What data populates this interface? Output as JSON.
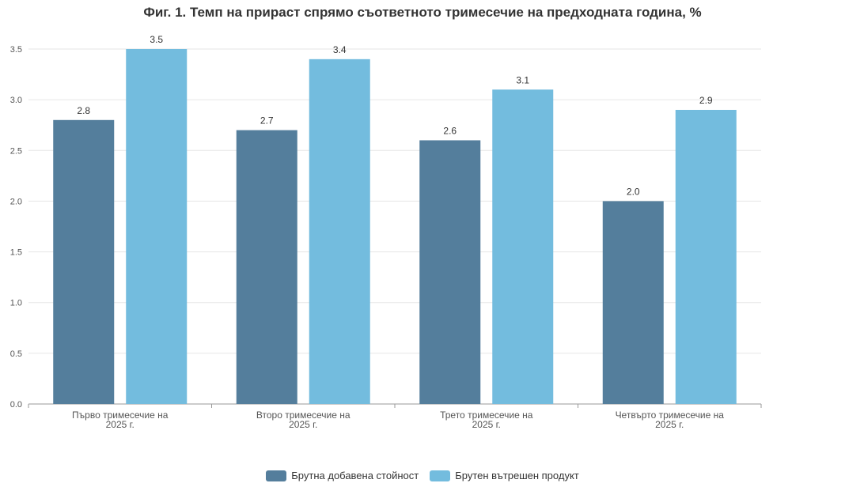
{
  "chart_data": {
    "type": "bar",
    "title": "Фиг. 1. Темп на прираст спрямо съответното тримесечие на предходната година, %",
    "categories": [
      [
        "Първо тримесечие на",
        "2025 г."
      ],
      [
        "Второ тримесечие на",
        "2025 г."
      ],
      [
        "Трето тримесечие на",
        "2025 г."
      ],
      [
        "Четвърто тримесечие на",
        "2025 г."
      ]
    ],
    "series": [
      {
        "name": "Брутна добавена стойност",
        "values": [
          2.8,
          2.7,
          2.6,
          2.0
        ],
        "color": "#547e9c"
      },
      {
        "name": "Брутен вътрешен продукт",
        "values": [
          3.5,
          3.4,
          3.1,
          2.9
        ],
        "color": "#73bcde"
      }
    ],
    "ylim": [
      0,
      3.5
    ],
    "yticks": [
      "0.0",
      "0.5",
      "1.0",
      "1.5",
      "2.0",
      "2.5",
      "3.0",
      "3.5"
    ],
    "grid": true,
    "data_labels": true,
    "legend_position": "bottom-center"
  }
}
